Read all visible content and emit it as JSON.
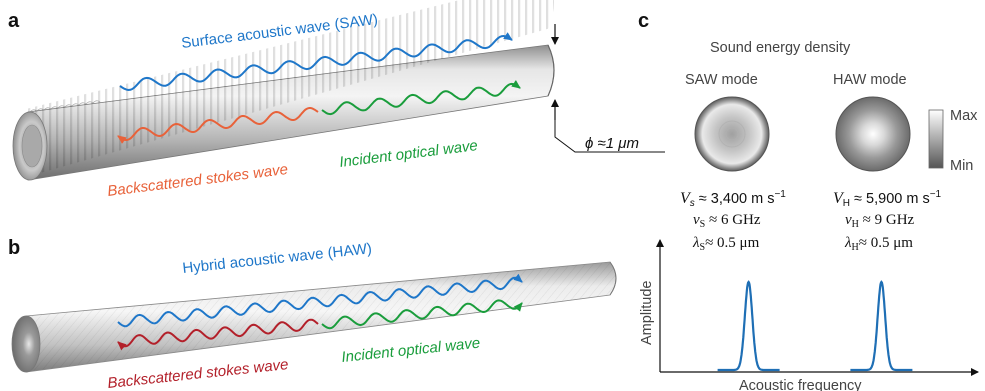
{
  "panels": {
    "a": {
      "letter": "a",
      "wave_label": "Surface acoustic wave (SAW)",
      "incident_label": "Incident optical wave",
      "backscatter_label": "Backscattered stokes wave",
      "diameter_label": "ϕ ≈1 μm"
    },
    "b": {
      "letter": "b",
      "wave_label": "Hybrid acoustic wave (HAW)",
      "incident_label": "Incident optical wave",
      "backscatter_label": "Backscattered stokes wave"
    },
    "c": {
      "letter": "c",
      "title": "Sound energy density",
      "saw_mode": "SAW mode",
      "haw_mode": "HAW mode",
      "scale_max": "Max",
      "scale_min": "Min",
      "saw_velocity": "V_s ≈ 3,400 m s⁻¹",
      "haw_velocity": "V_H ≈ 5,900 m s⁻¹",
      "saw_freq": "ν_S ≈ 6 GHz",
      "haw_freq": "ν_H ≈ 9 GHz",
      "saw_wavelength": "λ_S≈ 0.5 μm",
      "haw_wavelength": "λ_H≈ 0.5 μm",
      "ylabel": "Amplitude",
      "xlabel": "Acoustic frequency"
    }
  },
  "colors": {
    "acoustic": "#1f77c9",
    "incident": "#1a9d3c",
    "backscatter_a": "#e8623a",
    "backscatter_b": "#b3202a",
    "peak": "#1f6fb5"
  },
  "chart_data": {
    "type": "line",
    "xlabel": "Acoustic frequency",
    "ylabel": "Amplitude",
    "series": [
      {
        "name": "SAW mode",
        "x": [
          6
        ],
        "values": [
          1
        ]
      },
      {
        "name": "HAW mode",
        "x": [
          9
        ],
        "values": [
          1
        ]
      }
    ]
  }
}
